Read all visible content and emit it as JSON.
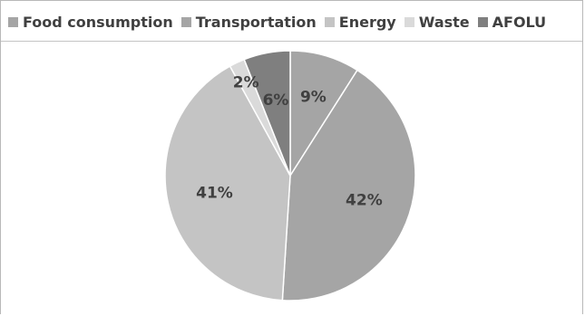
{
  "chart_data": {
    "type": "pie",
    "categories": [
      "Food consumption",
      "Transportation",
      "Energy",
      "Waste",
      "AFOLU"
    ],
    "values": [
      9,
      42,
      41,
      2,
      6
    ],
    "labels": [
      "9%",
      "42%",
      "41%",
      "2%",
      "6%"
    ],
    "colors": [
      "#a5a5a5",
      "#a5a5a5",
      "#c4c4c4",
      "#dadada",
      "#7f7f7f"
    ],
    "start_angle_deg": 0,
    "direction": "clockwise",
    "legend_position": "top",
    "title": ""
  }
}
